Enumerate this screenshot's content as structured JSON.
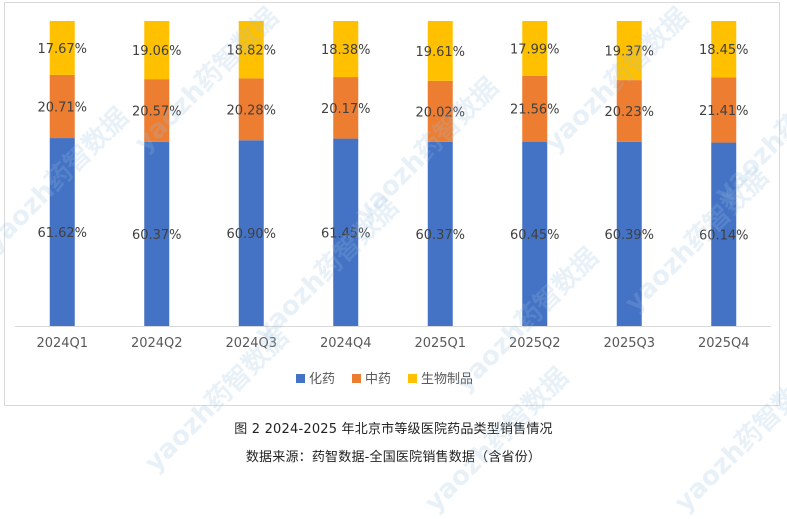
{
  "figure": {
    "caption": "图 2 2024-2025 年北京市等级医院药品类型销售情况",
    "source": "数据来源：药智数据-全国医院销售数据（含省份）"
  },
  "watermark": {
    "text": "yaozh药智数据"
  },
  "chart_data": {
    "type": "bar",
    "stacked": "percent",
    "categories": [
      "2024Q1",
      "2024Q2",
      "2024Q3",
      "2024Q4",
      "2025Q1",
      "2025Q2",
      "2025Q3",
      "2025Q4"
    ],
    "series": [
      {
        "name": "化药",
        "color": "#4472c4",
        "values": [
          61.62,
          60.37,
          60.9,
          61.45,
          60.37,
          60.45,
          60.39,
          60.14
        ],
        "labels": [
          "61.62%",
          "60.37%",
          "60.90%",
          "61.45%",
          "60.37%",
          "60.45%",
          "60.39%",
          "60.14%"
        ]
      },
      {
        "name": "中药",
        "color": "#ed7d31",
        "values": [
          20.71,
          20.57,
          20.28,
          20.17,
          20.02,
          21.56,
          20.23,
          21.41
        ],
        "labels": [
          "20.71%",
          "20.57%",
          "20.28%",
          "20.17%",
          "20.02%",
          "21.56%",
          "20.23%",
          "21.41%"
        ]
      },
      {
        "name": "生物制品",
        "color": "#ffc000",
        "values": [
          17.67,
          19.06,
          18.82,
          18.38,
          19.61,
          17.99,
          19.37,
          18.45
        ],
        "labels": [
          "17.67%",
          "19.06%",
          "18.82%",
          "18.38%",
          "19.61%",
          "17.99%",
          "19.37%",
          "18.45%"
        ]
      }
    ],
    "ylim": [
      0,
      100
    ],
    "grid": false,
    "legend_position": "bottom",
    "title": "",
    "xlabel": "",
    "ylabel": ""
  }
}
